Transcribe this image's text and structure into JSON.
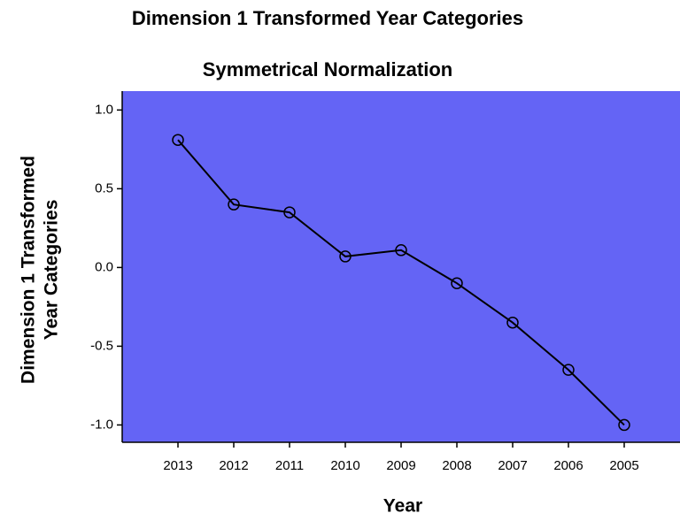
{
  "chart_data": {
    "type": "line",
    "title": "Dimension 1 Transformed Year Categories",
    "subtitle": "Symmetrical Normalization",
    "ylabel": [
      "Dimension 1 Transformed",
      "Year Categories"
    ],
    "xlabel": "Year",
    "categories": [
      "2013",
      "2012",
      "2011",
      "2010",
      "2009",
      "2008",
      "2007",
      "2006",
      "2005"
    ],
    "values": [
      0.81,
      0.4,
      0.35,
      0.07,
      0.11,
      -0.1,
      -0.35,
      -0.65,
      -1.0
    ],
    "color": "#000000",
    "background": "#6464f5",
    "ylim": [
      -1.11,
      1.12
    ],
    "yticks": [
      {
        "value": 1,
        "label": "1.0"
      },
      0.5,
      {
        "value": 0,
        "label": "0.0"
      },
      -0.5,
      {
        "value": -1,
        "label": "-1.0"
      }
    ]
  }
}
